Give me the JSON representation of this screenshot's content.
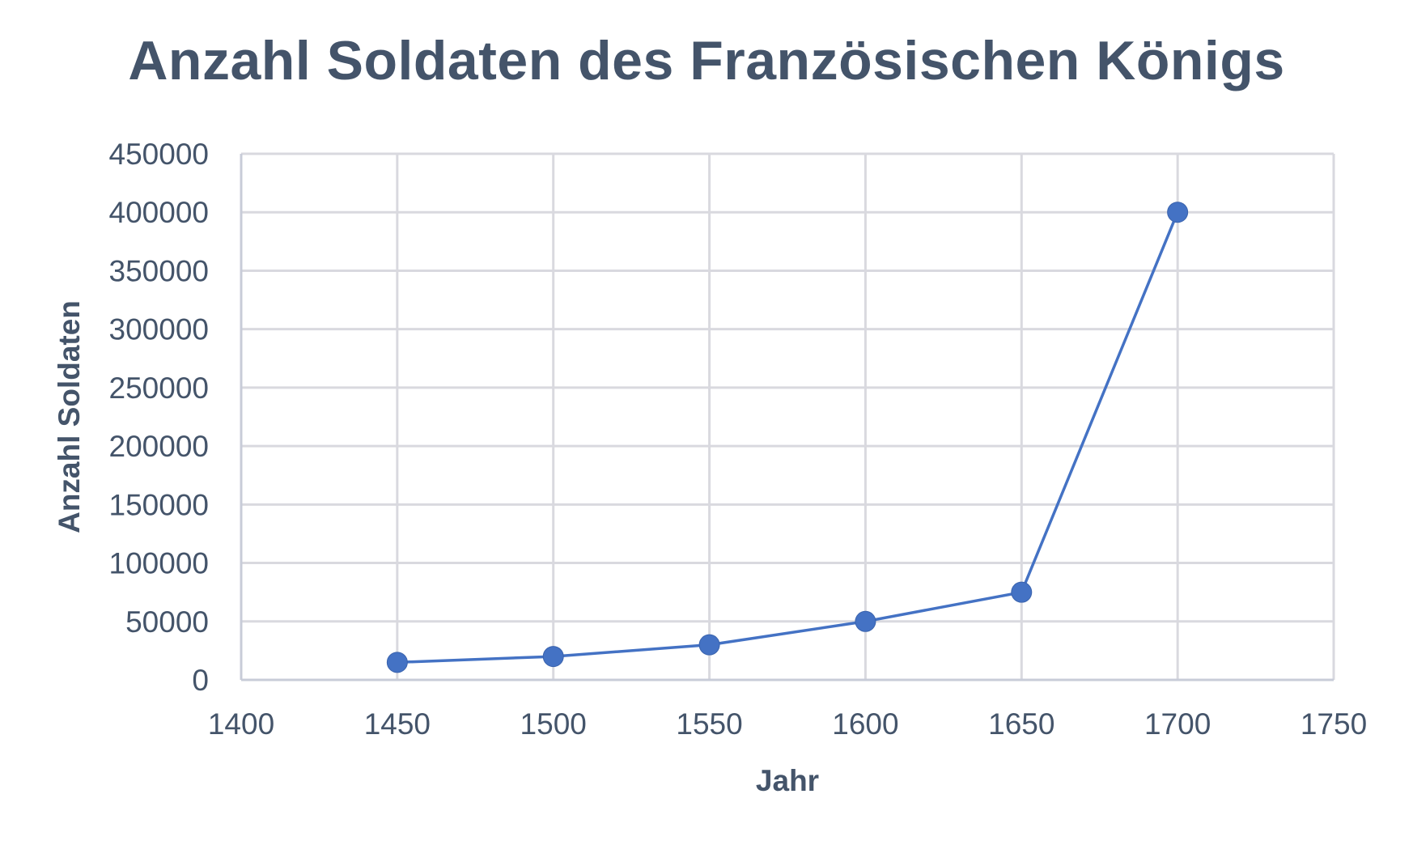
{
  "chart_data": {
    "type": "scatter",
    "title": "Anzahl Soldaten des Französischen Königs",
    "xlabel": "Jahr",
    "ylabel": "Anzahl Soldaten",
    "xlim": [
      1400,
      1750
    ],
    "ylim": [
      0,
      450000
    ],
    "x_ticks": [
      1400,
      1450,
      1500,
      1550,
      1600,
      1650,
      1700,
      1750
    ],
    "y_ticks": [
      0,
      50000,
      100000,
      150000,
      200000,
      250000,
      300000,
      350000,
      400000,
      450000
    ],
    "grid": true,
    "legend": "none",
    "colors": {
      "series": "#4472c4",
      "text": "#44546a",
      "grid": "#d9d9df"
    },
    "series": [
      {
        "x": [
          1450,
          1500,
          1550,
          1600,
          1650,
          1700
        ],
        "y": [
          15000,
          20000,
          30000,
          50000,
          75000,
          400000
        ]
      }
    ]
  }
}
